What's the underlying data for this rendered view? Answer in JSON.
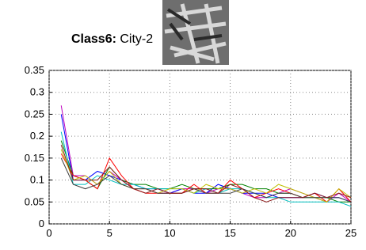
{
  "chart_data": {
    "type": "line",
    "class_label": "Class6:",
    "title": "City-2",
    "x": [
      1,
      2,
      3,
      4,
      5,
      6,
      7,
      8,
      9,
      10,
      11,
      12,
      13,
      14,
      15,
      16,
      17,
      18,
      19,
      20,
      21,
      22,
      23,
      24,
      25
    ],
    "series": [
      {
        "color": "#bf00bf",
        "values": [
          0.27,
          0.11,
          0.11,
          0.09,
          0.12,
          0.1,
          0.08,
          0.08,
          0.07,
          0.07,
          0.08,
          0.08,
          0.07,
          0.08,
          0.08,
          0.07,
          0.06,
          0.06,
          0.07,
          0.08,
          0.07,
          0.06,
          0.05,
          0.07,
          0.05
        ]
      },
      {
        "color": "#0000ff",
        "values": [
          0.25,
          0.1,
          0.1,
          0.12,
          0.11,
          0.1,
          0.09,
          0.08,
          0.08,
          0.07,
          0.08,
          0.07,
          0.07,
          0.09,
          0.08,
          0.07,
          0.07,
          0.07,
          0.06,
          0.06,
          0.06,
          0.07,
          0.06,
          0.06,
          0.05
        ]
      },
      {
        "color": "#008000",
        "values": [
          0.19,
          0.11,
          0.1,
          0.08,
          0.13,
          0.1,
          0.09,
          0.09,
          0.08,
          0.08,
          0.09,
          0.08,
          0.08,
          0.08,
          0.09,
          0.09,
          0.08,
          0.08,
          0.07,
          0.07,
          0.06,
          0.06,
          0.06,
          0.05,
          0.05
        ]
      },
      {
        "color": "#00bfbf",
        "values": [
          0.21,
          0.09,
          0.09,
          0.11,
          0.1,
          0.09,
          0.09,
          0.08,
          0.08,
          0.08,
          0.08,
          0.07,
          0.08,
          0.07,
          0.08,
          0.08,
          0.07,
          0.06,
          0.06,
          0.05,
          0.05,
          0.05,
          0.05,
          0.05,
          0.04
        ]
      },
      {
        "color": "#ff0000",
        "values": [
          0.16,
          0.11,
          0.1,
          0.08,
          0.15,
          0.11,
          0.08,
          0.07,
          0.07,
          0.07,
          0.07,
          0.09,
          0.07,
          0.07,
          0.1,
          0.08,
          0.06,
          0.07,
          0.08,
          0.07,
          0.06,
          0.07,
          0.05,
          0.08,
          0.05
        ]
      },
      {
        "color": "#bfbf00",
        "values": [
          0.17,
          0.1,
          0.11,
          0.09,
          0.12,
          0.09,
          0.08,
          0.08,
          0.07,
          0.08,
          0.08,
          0.07,
          0.09,
          0.08,
          0.08,
          0.07,
          0.08,
          0.07,
          0.09,
          0.08,
          0.07,
          0.06,
          0.05,
          0.08,
          0.06
        ]
      },
      {
        "color": "#404040",
        "values": [
          0.15,
          0.09,
          0.08,
          0.09,
          0.11,
          0.09,
          0.08,
          0.08,
          0.07,
          0.07,
          0.07,
          0.08,
          0.07,
          0.07,
          0.07,
          0.08,
          0.07,
          0.06,
          0.07,
          0.07,
          0.06,
          0.06,
          0.06,
          0.06,
          0.05
        ]
      },
      {
        "color": "#8b1a1a",
        "values": [
          0.18,
          0.1,
          0.1,
          0.1,
          0.13,
          0.1,
          0.08,
          0.07,
          0.08,
          0.07,
          0.07,
          0.08,
          0.08,
          0.07,
          0.09,
          0.08,
          0.06,
          0.05,
          0.06,
          0.06,
          0.06,
          0.07,
          0.06,
          0.07,
          0.06
        ]
      }
    ],
    "xlim": [
      0,
      25
    ],
    "xticks": [
      0,
      5,
      10,
      15,
      20,
      25
    ],
    "ylim": [
      0,
      0.35
    ],
    "yticks": [
      0,
      0.05,
      0.1,
      0.15,
      0.2,
      0.25,
      0.3,
      0.35
    ],
    "grid": true
  }
}
